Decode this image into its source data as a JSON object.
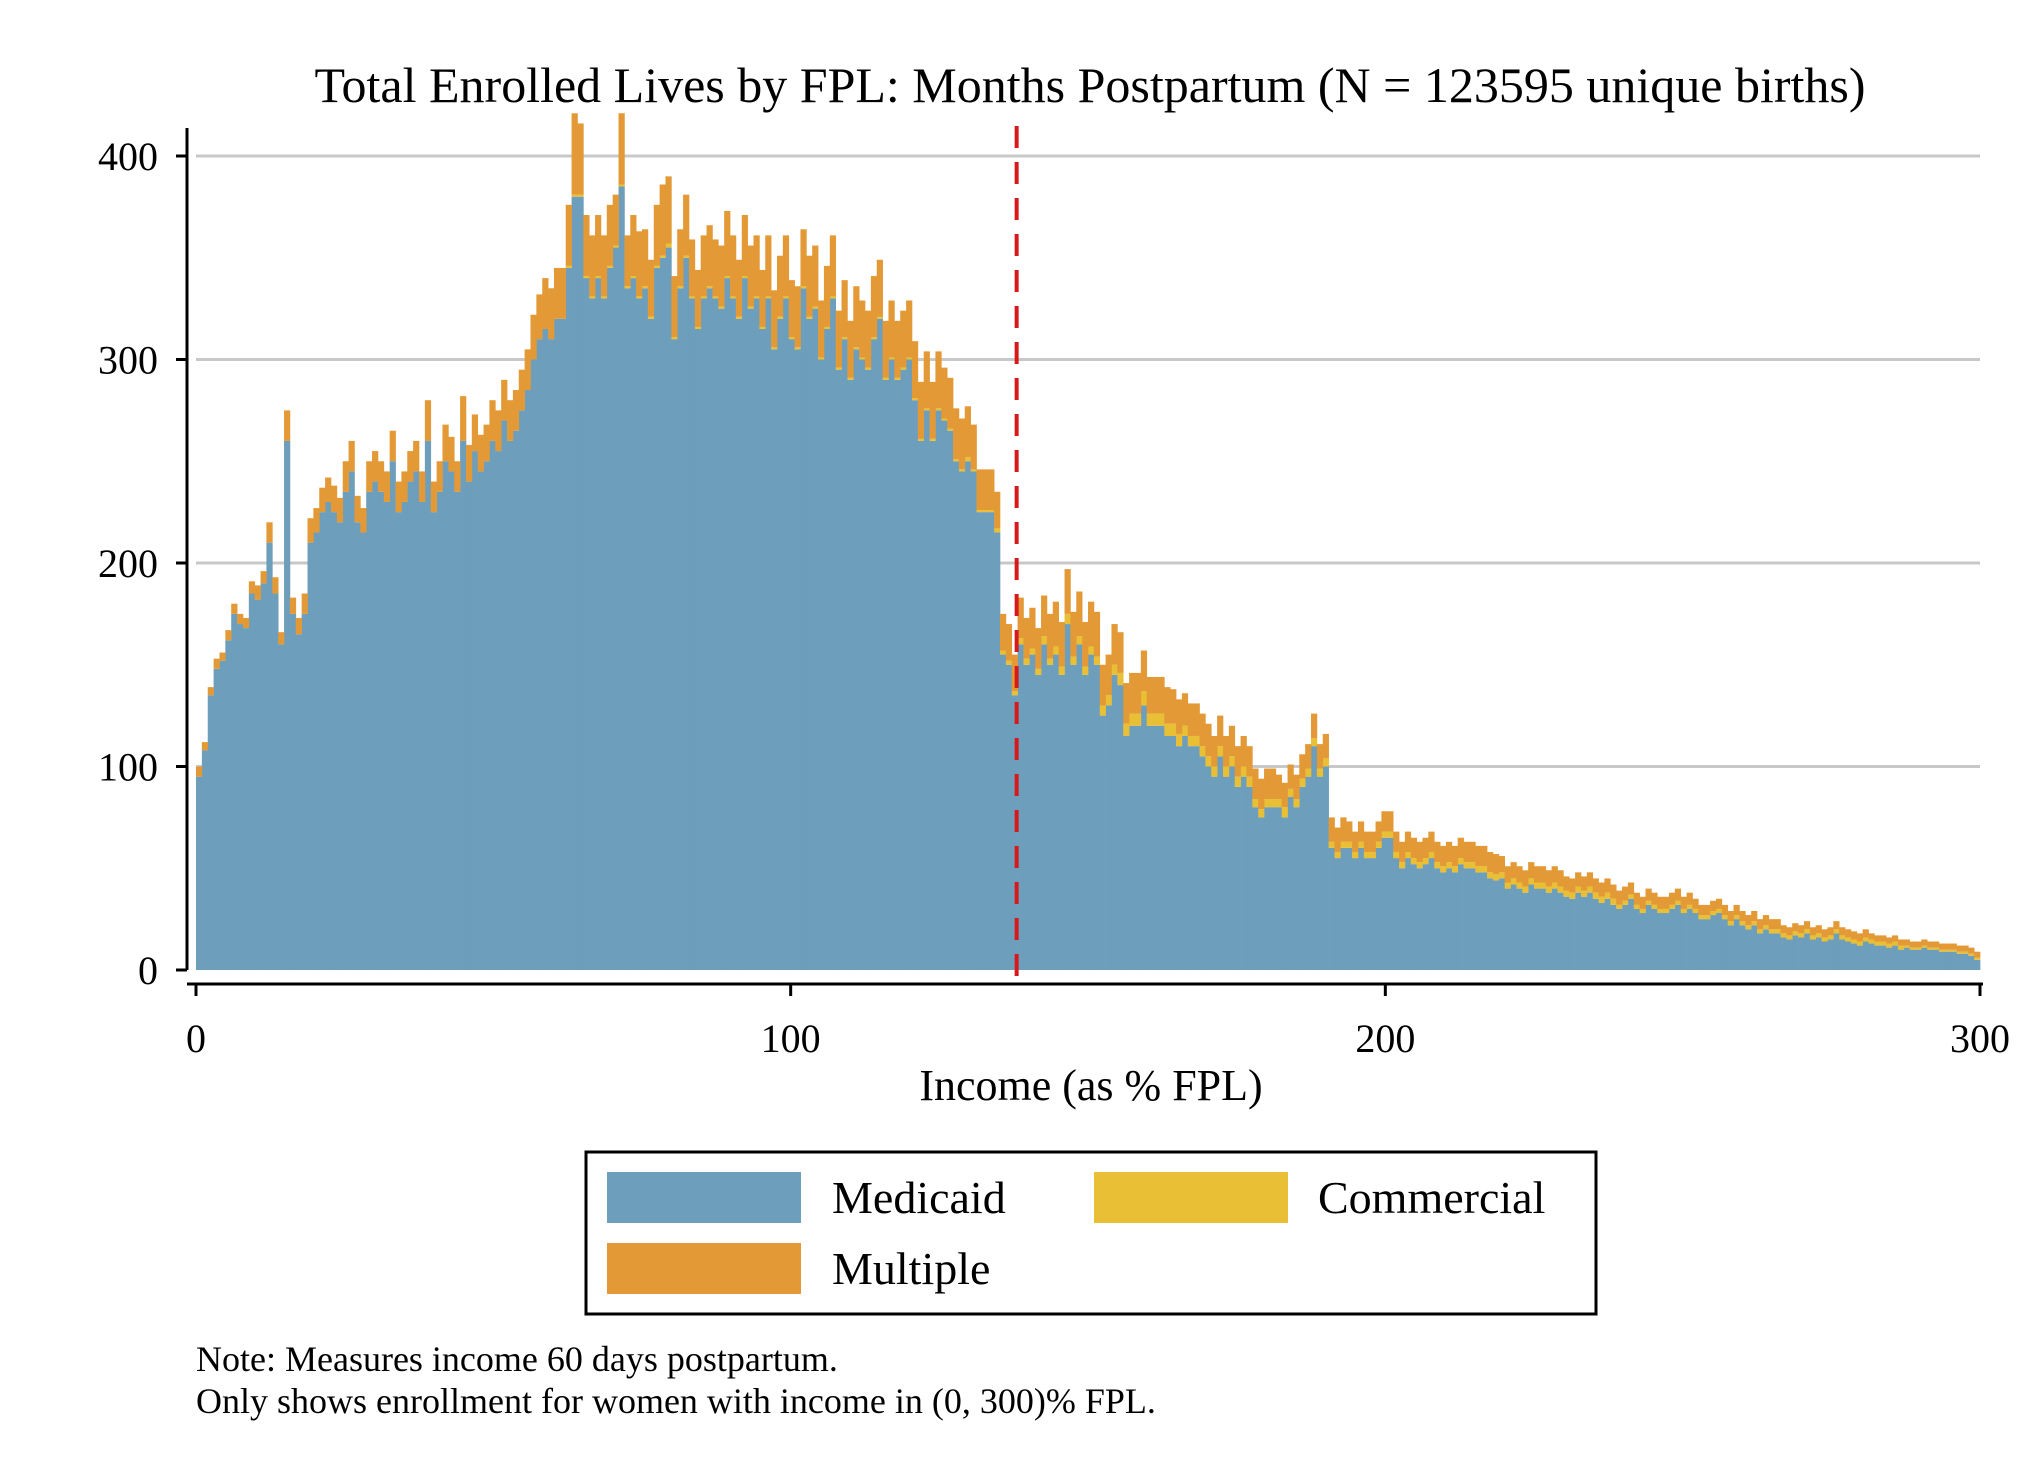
{
  "chart_data": {
    "type": "bar",
    "stacked": true,
    "title": "Total Enrolled Lives by FPL:  Months Postpartum (N = 123595 unique births)",
    "xlabel": "Income (as % FPL)",
    "ylabel": "",
    "xlim": [
      0,
      300
    ],
    "ylim": [
      0,
      400
    ],
    "xticks": [
      "0",
      "100",
      "200",
      "300"
    ],
    "yticks": [
      "0",
      "100",
      "200",
      "300",
      "400"
    ],
    "grid": "horizontal",
    "reference_line": {
      "x": 138,
      "color": "#d7191c",
      "style": "dashed"
    },
    "legend_position": "bottom",
    "bin_width": 1,
    "colors": {
      "Medicaid": "#6d9ebc",
      "Commercial": "#e8bf35",
      "Multiple": "#e39a36"
    },
    "series": [
      {
        "name": "Medicaid",
        "values": [
          95,
          108,
          135,
          148,
          152,
          162,
          175,
          170,
          168,
          185,
          182,
          190,
          210,
          185,
          160,
          260,
          175,
          165,
          175,
          210,
          215,
          225,
          230,
          225,
          220,
          235,
          245,
          220,
          215,
          235,
          240,
          235,
          230,
          250,
          225,
          230,
          240,
          245,
          230,
          260,
          225,
          235,
          250,
          245,
          235,
          260,
          240,
          255,
          245,
          250,
          260,
          255,
          270,
          260,
          265,
          275,
          285,
          300,
          310,
          315,
          310,
          320,
          320,
          345,
          380,
          380,
          340,
          330,
          340,
          330,
          345,
          355,
          385,
          335,
          340,
          330,
          335,
          320,
          345,
          350,
          355,
          310,
          335,
          350,
          330,
          315,
          330,
          335,
          330,
          325,
          340,
          330,
          320,
          340,
          325,
          330,
          315,
          330,
          305,
          320,
          330,
          310,
          305,
          335,
          320,
          325,
          300,
          315,
          330,
          295,
          310,
          290,
          305,
          300,
          295,
          310,
          320,
          290,
          300,
          290,
          295,
          300,
          280,
          260,
          275,
          260,
          275,
          270,
          265,
          250,
          245,
          250,
          245,
          225,
          225,
          225,
          215,
          155,
          150,
          135,
          160,
          150,
          155,
          145,
          160,
          150,
          155,
          145,
          170,
          150,
          160,
          145,
          155,
          150,
          125,
          130,
          145,
          140,
          115,
          120,
          120,
          130,
          120,
          120,
          120,
          115,
          115,
          110,
          115,
          110,
          110,
          105,
          100,
          95,
          105,
          95,
          100,
          90,
          95,
          90,
          80,
          75,
          80,
          80,
          80,
          75,
          85,
          80,
          90,
          95,
          110,
          95,
          100,
          60,
          55,
          60,
          60,
          55,
          60,
          55,
          55,
          60,
          65,
          65,
          55,
          50,
          55,
          52,
          50,
          52,
          55,
          50,
          48,
          50,
          48,
          52,
          50,
          50,
          48,
          48,
          45,
          44,
          45,
          40,
          42,
          40,
          38,
          42,
          40,
          40,
          38,
          40,
          38,
          36,
          35,
          38,
          36,
          38,
          35,
          33,
          35,
          32,
          30,
          32,
          35,
          30,
          28,
          32,
          30,
          28,
          28,
          30,
          32,
          28,
          30,
          28,
          25,
          25,
          27,
          28,
          25,
          22,
          25,
          22,
          20,
          22,
          18,
          20,
          18,
          18,
          16,
          15,
          17,
          16,
          18,
          15,
          16,
          14,
          15,
          18,
          15,
          14,
          13,
          12,
          14,
          13,
          12,
          12,
          11,
          12,
          10,
          11,
          10,
          10,
          11,
          10,
          10,
          9,
          9,
          9,
          8,
          8,
          7,
          5
        ]
      },
      {
        "name": "Commercial",
        "values": [
          0,
          0,
          0,
          0,
          0,
          0,
          0,
          0,
          0,
          0,
          0,
          0,
          0,
          0,
          0,
          0,
          0,
          0,
          0,
          0,
          0,
          0,
          0,
          0,
          0,
          0,
          0,
          0,
          0,
          0,
          0,
          0,
          0,
          0,
          0,
          0,
          0,
          0,
          0,
          0,
          0,
          0,
          0,
          0,
          0,
          0,
          0,
          0,
          0,
          0,
          0,
          0,
          0,
          0,
          0,
          0,
          0,
          0,
          0,
          0,
          0,
          0,
          0,
          1,
          1,
          1,
          1,
          1,
          1,
          1,
          1,
          1,
          1,
          1,
          1,
          1,
          1,
          1,
          1,
          1,
          2,
          1,
          1,
          1,
          1,
          1,
          1,
          1,
          1,
          1,
          1,
          1,
          1,
          1,
          1,
          1,
          1,
          1,
          1,
          1,
          1,
          1,
          1,
          1,
          1,
          1,
          1,
          1,
          1,
          1,
          1,
          1,
          1,
          1,
          1,
          1,
          1,
          1,
          1,
          1,
          1,
          1,
          1,
          1,
          1,
          1,
          1,
          1,
          1,
          1,
          1,
          2,
          1,
          1,
          1,
          1,
          2,
          2,
          2,
          2,
          3,
          3,
          3,
          3,
          4,
          3,
          4,
          4,
          5,
          4,
          4,
          4,
          4,
          4,
          5,
          5,
          5,
          6,
          6,
          6,
          6,
          7,
          6,
          6,
          6,
          6,
          6,
          6,
          5,
          5,
          5,
          5,
          5,
          5,
          5,
          5,
          5,
          5,
          5,
          5,
          4,
          4,
          4,
          4,
          4,
          5,
          4,
          4,
          4,
          4,
          4,
          4,
          4,
          3,
          3,
          3,
          3,
          3,
          3,
          3,
          3,
          3,
          3,
          3,
          3,
          3,
          3,
          3,
          3,
          3,
          3,
          3,
          3,
          3,
          3,
          3,
          3,
          3,
          3,
          3,
          3,
          3,
          3,
          3,
          3,
          3,
          3,
          3,
          3,
          3,
          3,
          3,
          3,
          3,
          3,
          3,
          3,
          3,
          3,
          3,
          3,
          3,
          2,
          2,
          2,
          2,
          2,
          2,
          2,
          2,
          2,
          2,
          2,
          2,
          2,
          2,
          2,
          2,
          2,
          2,
          2,
          2,
          2,
          2,
          2,
          2,
          2,
          2,
          2,
          2,
          2,
          2,
          2,
          2,
          2,
          2,
          2,
          2,
          2,
          2,
          2,
          2,
          2,
          2,
          2,
          2,
          2,
          2,
          2,
          2,
          2,
          1,
          1,
          1,
          1,
          1,
          1,
          1,
          1,
          1,
          1,
          1,
          1,
          1,
          1,
          1,
          1,
          1,
          1,
          1
        ]
      },
      {
        "name": "Multiple",
        "values": [
          5,
          4,
          4,
          5,
          4,
          5,
          5,
          5,
          5,
          6,
          7,
          6,
          10,
          8,
          6,
          15,
          8,
          8,
          10,
          12,
          12,
          12,
          12,
          13,
          12,
          15,
          15,
          13,
          12,
          15,
          15,
          15,
          15,
          15,
          15,
          15,
          15,
          15,
          15,
          20,
          15,
          15,
          18,
          17,
          15,
          22,
          18,
          18,
          18,
          18,
          20,
          20,
          20,
          20,
          20,
          20,
          20,
          22,
          22,
          25,
          25,
          25,
          25,
          30,
          40,
          35,
          30,
          30,
          30,
          30,
          30,
          25,
          35,
          25,
          30,
          32,
          28,
          28,
          30,
          35,
          33,
          30,
          28,
          30,
          28,
          28,
          30,
          30,
          28,
          30,
          32,
          30,
          28,
          30,
          30,
          30,
          28,
          30,
          28,
          30,
          30,
          28,
          30,
          28,
          30,
          30,
          28,
          30,
          30,
          28,
          28,
          28,
          30,
          28,
          28,
          30,
          28,
          28,
          28,
          28,
          28,
          28,
          28,
          28,
          28,
          28,
          28,
          25,
          25,
          25,
          25,
          25,
          22,
          20,
          20,
          20,
          18,
          18,
          18,
          18,
          20,
          20,
          20,
          20,
          20,
          22,
          22,
          22,
          22,
          22,
          22,
          22,
          22,
          22,
          20,
          20,
          20,
          20,
          20,
          20,
          20,
          20,
          18,
          18,
          18,
          18,
          17,
          17,
          16,
          16,
          16,
          16,
          16,
          15,
          15,
          15,
          15,
          15,
          15,
          15,
          15,
          15,
          15,
          15,
          12,
          12,
          12,
          12,
          12,
          12,
          12,
          12,
          12,
          12,
          12,
          12,
          10,
          10,
          10,
          10,
          10,
          10,
          10,
          10,
          10,
          10,
          10,
          10,
          10,
          10,
          10,
          10,
          10,
          10,
          10,
          10,
          10,
          10,
          10,
          10,
          10,
          10,
          8,
          8,
          8,
          8,
          8,
          8,
          8,
          8,
          8,
          8,
          8,
          7,
          7,
          7,
          7,
          7,
          7,
          7,
          7,
          7,
          7,
          7,
          6,
          6,
          6,
          6,
          6,
          6,
          6,
          6,
          6,
          6,
          6,
          5,
          5,
          5,
          5,
          5,
          5,
          5,
          5,
          5,
          5,
          5,
          5,
          5,
          5,
          5,
          4,
          4,
          4,
          4,
          4,
          4,
          4,
          4,
          4,
          4,
          4,
          4,
          4,
          4,
          4,
          3,
          3,
          3,
          3,
          3,
          3,
          3,
          3,
          3,
          3,
          3,
          3,
          3,
          3,
          3,
          3,
          3,
          3,
          3,
          3,
          3,
          3,
          2,
          2,
          2,
          2,
          2,
          2,
          2,
          2,
          2
        ]
      }
    ]
  },
  "legend": {
    "items": [
      {
        "name": "Medicaid",
        "color": "#6d9ebc"
      },
      {
        "name": "Commercial",
        "color": "#e8bf35"
      },
      {
        "name": "Multiple",
        "color": "#e39a36"
      }
    ]
  },
  "note": {
    "line1": "Note: Measures income 60 days postpartum.",
    "line2": "Only shows enrollment for women with income in (0, 300)% FPL."
  }
}
